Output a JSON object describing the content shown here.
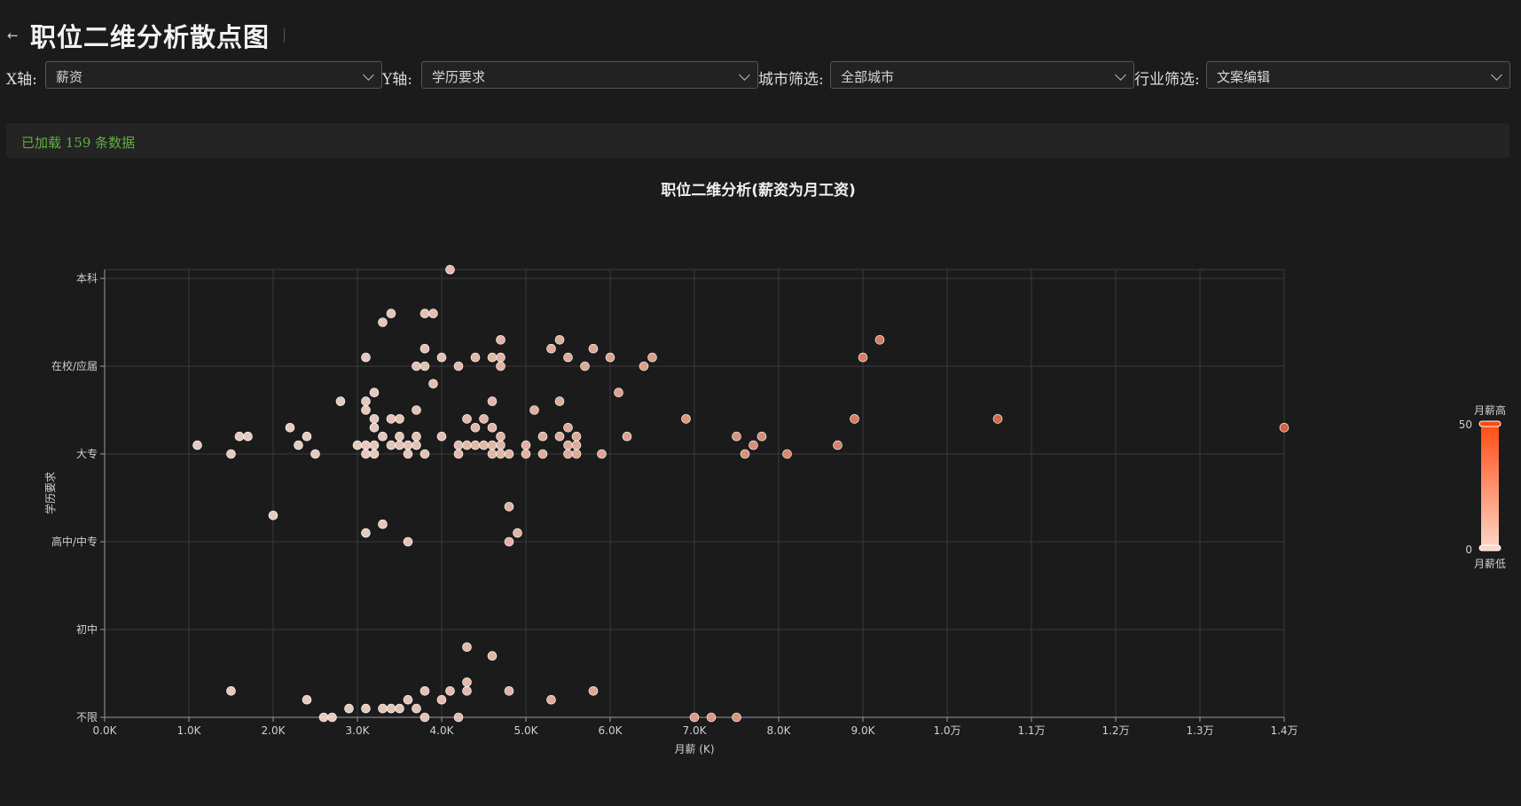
{
  "page": {
    "title": "职位二维分析散点图"
  },
  "filters": {
    "x": {
      "label": "X轴:",
      "value": "薪资"
    },
    "y": {
      "label": "Y轴:",
      "value": "学历要求"
    },
    "city": {
      "label": "城市筛选:",
      "value": "全部城市"
    },
    "industry": {
      "label": "行业筛选:",
      "value": "文案编辑"
    }
  },
  "status": {
    "text": "已加载 159 条数据"
  },
  "colors": {
    "point_low": "#f7d9cc",
    "point_high": "#e06a49",
    "scale_top": "#ff4a10",
    "scale_bottom": "#fcd7c7",
    "status_text": "#5faf3f"
  },
  "chart_data": {
    "type": "scatter",
    "title": "职位二维分析(薪资为月工资)",
    "xlabel": "月薪 (K)",
    "ylabel": "学历要求",
    "xlim": [
      0,
      14000
    ],
    "x_ticks": [
      {
        "value": 0,
        "label": "0.0K"
      },
      {
        "value": 1000,
        "label": "1.0K"
      },
      {
        "value": 2000,
        "label": "2.0K"
      },
      {
        "value": 3000,
        "label": "3.0K"
      },
      {
        "value": 4000,
        "label": "4.0K"
      },
      {
        "value": 5000,
        "label": "5.0K"
      },
      {
        "value": 6000,
        "label": "6.0K"
      },
      {
        "value": 7000,
        "label": "7.0K"
      },
      {
        "value": 8000,
        "label": "8.0K"
      },
      {
        "value": 9000,
        "label": "9.0K"
      },
      {
        "value": 10000,
        "label": "1.0万"
      },
      {
        "value": 11000,
        "label": "1.1万"
      },
      {
        "value": 12000,
        "label": "1.2万"
      },
      {
        "value": 13000,
        "label": "1.3万"
      },
      {
        "value": 14000,
        "label": "1.4万"
      }
    ],
    "y_categories": [
      "不限",
      "初中",
      "高中/中专",
      "大专",
      "在校/应届",
      "本科"
    ],
    "grid": true,
    "visual_map": {
      "max": 50,
      "min": 0,
      "max_label": "月薪高",
      "min_label": "月薪低"
    },
    "points": [
      [
        4100,
        5.1
      ],
      [
        3400,
        4.6
      ],
      [
        3800,
        4.6
      ],
      [
        3900,
        4.6
      ],
      [
        3300,
        4.5
      ],
      [
        4700,
        4.3
      ],
      [
        5400,
        4.3
      ],
      [
        3800,
        4.2
      ],
      [
        5300,
        4.2
      ],
      [
        5800,
        4.2
      ],
      [
        9200,
        4.3
      ],
      [
        3100,
        4.1
      ],
      [
        4000,
        4.1
      ],
      [
        4400,
        4.1
      ],
      [
        4600,
        4.1
      ],
      [
        4700,
        4.1
      ],
      [
        5500,
        4.1
      ],
      [
        6000,
        4.1
      ],
      [
        6500,
        4.1
      ],
      [
        9000,
        4.1
      ],
      [
        3700,
        4.0
      ],
      [
        3800,
        4.0
      ],
      [
        4200,
        4.0
      ],
      [
        4700,
        4.0
      ],
      [
        5700,
        4.0
      ],
      [
        6400,
        4.0
      ],
      [
        3900,
        3.8
      ],
      [
        3200,
        3.7
      ],
      [
        6100,
        3.7
      ],
      [
        2800,
        3.6
      ],
      [
        3100,
        3.6
      ],
      [
        4600,
        3.6
      ],
      [
        5400,
        3.6
      ],
      [
        3100,
        3.5
      ],
      [
        3700,
        3.5
      ],
      [
        5100,
        3.5
      ],
      [
        3200,
        3.4
      ],
      [
        3400,
        3.4
      ],
      [
        3500,
        3.4
      ],
      [
        4300,
        3.4
      ],
      [
        4500,
        3.4
      ],
      [
        6900,
        3.4
      ],
      [
        8900,
        3.4
      ],
      [
        10600,
        3.4
      ],
      [
        2200,
        3.3
      ],
      [
        3200,
        3.3
      ],
      [
        4400,
        3.3
      ],
      [
        4600,
        3.3
      ],
      [
        5500,
        3.3
      ],
      [
        14000,
        3.3
      ],
      [
        1600,
        3.2
      ],
      [
        1700,
        3.2
      ],
      [
        2400,
        3.2
      ],
      [
        3300,
        3.2
      ],
      [
        3500,
        3.2
      ],
      [
        3700,
        3.2
      ],
      [
        4000,
        3.2
      ],
      [
        4700,
        3.2
      ],
      [
        5200,
        3.2
      ],
      [
        5400,
        3.2
      ],
      [
        5600,
        3.2
      ],
      [
        6200,
        3.2
      ],
      [
        7500,
        3.2
      ],
      [
        7800,
        3.2
      ],
      [
        1100,
        3.1
      ],
      [
        2300,
        3.1
      ],
      [
        3000,
        3.1
      ],
      [
        3100,
        3.1
      ],
      [
        3200,
        3.1
      ],
      [
        3400,
        3.1
      ],
      [
        3500,
        3.1
      ],
      [
        3600,
        3.1
      ],
      [
        3700,
        3.1
      ],
      [
        4200,
        3.1
      ],
      [
        4300,
        3.1
      ],
      [
        4400,
        3.1
      ],
      [
        4500,
        3.1
      ],
      [
        4600,
        3.1
      ],
      [
        4700,
        3.1
      ],
      [
        5000,
        3.1
      ],
      [
        5500,
        3.1
      ],
      [
        5600,
        3.1
      ],
      [
        7700,
        3.1
      ],
      [
        8700,
        3.1
      ],
      [
        1500,
        3.0
      ],
      [
        2500,
        3.0
      ],
      [
        3100,
        3.0
      ],
      [
        3200,
        3.0
      ],
      [
        3600,
        3.0
      ],
      [
        3800,
        3.0
      ],
      [
        4200,
        3.0
      ],
      [
        4600,
        3.0
      ],
      [
        4700,
        3.0
      ],
      [
        4800,
        3.0
      ],
      [
        5000,
        3.0
      ],
      [
        5200,
        3.0
      ],
      [
        5500,
        3.0
      ],
      [
        5600,
        3.0
      ],
      [
        5900,
        3.0
      ],
      [
        7600,
        3.0
      ],
      [
        8100,
        3.0
      ],
      [
        4800,
        2.4
      ],
      [
        2000,
        2.3
      ],
      [
        3300,
        2.2
      ],
      [
        3100,
        2.1
      ],
      [
        4900,
        2.1
      ],
      [
        3600,
        2.0
      ],
      [
        4800,
        2.0
      ],
      [
        4300,
        0.8
      ],
      [
        4600,
        0.7
      ],
      [
        4300,
        0.4
      ],
      [
        1500,
        0.3
      ],
      [
        3800,
        0.3
      ],
      [
        4100,
        0.3
      ],
      [
        4300,
        0.3
      ],
      [
        4800,
        0.3
      ],
      [
        5800,
        0.3
      ],
      [
        2400,
        0.2
      ],
      [
        3600,
        0.2
      ],
      [
        4000,
        0.2
      ],
      [
        5300,
        0.2
      ],
      [
        2900,
        0.1
      ],
      [
        3100,
        0.1
      ],
      [
        3300,
        0.1
      ],
      [
        3400,
        0.1
      ],
      [
        3500,
        0.1
      ],
      [
        3700,
        0.1
      ],
      [
        2600,
        0.0
      ],
      [
        2700,
        0.0
      ],
      [
        3800,
        0.0
      ],
      [
        4200,
        0.0
      ],
      [
        7000,
        0.0
      ],
      [
        7200,
        0.0
      ],
      [
        7500,
        0.0
      ]
    ]
  }
}
